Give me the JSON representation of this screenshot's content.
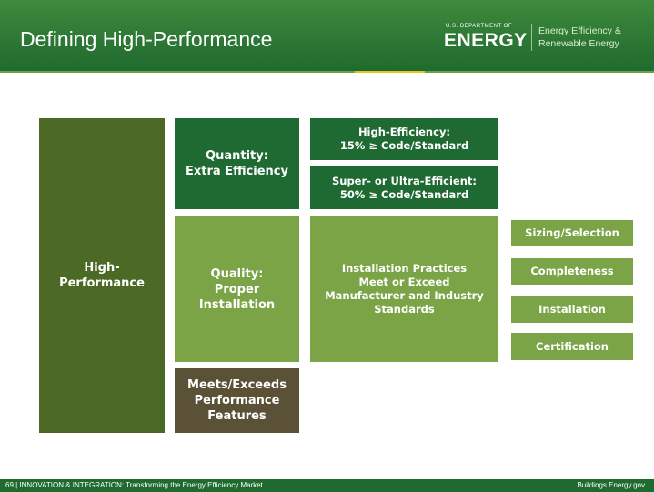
{
  "header": {
    "title": "Defining High-Performance",
    "logo_top": "U.S. DEPARTMENT OF",
    "logo_main": "ENERGY",
    "office": [
      "Energy Efficiency &",
      "Renewable Energy"
    ]
  },
  "nodes": [
    {
      "lines": [
        "High-",
        "Performance"
      ]
    },
    {
      "lines": [
        "Quantity:",
        "Extra Efficiency"
      ]
    },
    {
      "lines": [
        "Quality:",
        "Proper",
        "Installation"
      ]
    },
    {
      "lines": [
        "Meets/Exceeds",
        "Performance",
        "Features"
      ]
    },
    {
      "lines": [
        "High-Efficiency:",
        "15% ≥ Code/Standard"
      ]
    },
    {
      "lines": [
        "Super- or Ultra-Efficient:",
        "50% ≥ Code/Standard"
      ]
    },
    {
      "lines": [
        "Installation Practices",
        "Meet or Exceed",
        "Manufacturer and Industry",
        "Standards"
      ]
    },
    {
      "lines": [
        "Sizing/Selection"
      ]
    },
    {
      "lines": [
        "Completeness"
      ]
    },
    {
      "lines": [
        "Installation"
      ]
    },
    {
      "lines": [
        "Certification"
      ]
    }
  ],
  "footer": {
    "left": "69 | INNOVATION & INTEGRATION: Transforming the Energy Efficiency Market",
    "right": "Buildings.Energy.gov"
  }
}
